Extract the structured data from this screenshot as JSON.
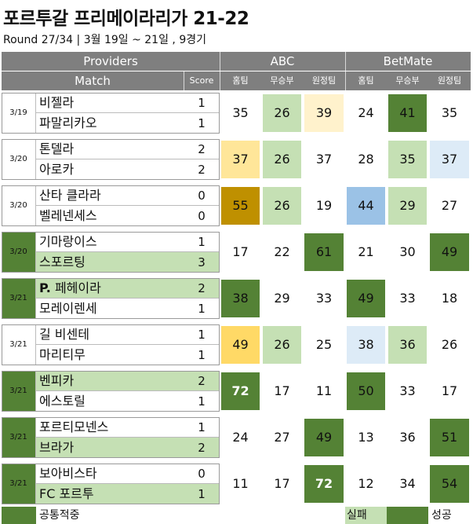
{
  "title": "포르투갈 프리메이라리가 21-22",
  "subtitle": "Round 27/34 | 3월 19일 ~ 21일 , 9경기",
  "header": {
    "providers": "Providers",
    "match": "Match",
    "score": "Score",
    "provider_names": [
      "ABC",
      "BetMate"
    ],
    "outcome_labels": [
      "홈팀",
      "무승부",
      "원정팀",
      "홈팀",
      "무승부",
      "원정팀"
    ]
  },
  "colors": {
    "header_bg": "#7f7f7f",
    "common_hit": "#548235",
    "fail": "#c5e0b4",
    "success": "#548235",
    "yellow_light": "#fff2cc",
    "yellow": "#ffe699",
    "yellow_mid": "#ffd966",
    "gold": "#bf9000",
    "blue_light": "#ddebf7",
    "blue": "#9bc2e6"
  },
  "chart_data": {
    "type": "table",
    "title": "포르투갈 프리메이라리가 21-22",
    "subtitle": "Round 27/34 | 3월 19일 ~ 21일 , 9경기",
    "columns": [
      "ABC 홈팀",
      "ABC 무승부",
      "ABC 원정팀",
      "BetMate 홈팀",
      "BetMate 무승부",
      "BetMate 원정팀"
    ],
    "matches": [
      {
        "date": "3/19",
        "home": "비젤라",
        "away": "파말리카오",
        "home_score": "1",
        "away_score": "1",
        "odds": [
          35,
          26,
          39,
          24,
          41,
          35
        ],
        "row_bg": "",
        "team_hl": [
          "",
          ""
        ],
        "odd_bg": [
          "",
          "#c5e0b4",
          "#fff2cc",
          "",
          "#548235",
          ""
        ]
      },
      {
        "date": "3/20",
        "home": "톤델라",
        "away": "아로카",
        "home_score": "2",
        "away_score": "2",
        "odds": [
          37,
          26,
          37,
          28,
          35,
          37
        ],
        "row_bg": "",
        "team_hl": [
          "",
          ""
        ],
        "odd_bg": [
          "#ffe699",
          "#c5e0b4",
          "",
          "",
          "#c5e0b4",
          "#ddebf7"
        ]
      },
      {
        "date": "3/20",
        "home": "산타 클라라",
        "away": "벨레넨세스",
        "home_score": "0",
        "away_score": "0",
        "odds": [
          55,
          26,
          19,
          44,
          29,
          27
        ],
        "row_bg": "",
        "team_hl": [
          "",
          ""
        ],
        "odd_bg": [
          "#bf9000",
          "#c5e0b4",
          "",
          "#9bc2e6",
          "#c5e0b4",
          ""
        ]
      },
      {
        "date": "3/20",
        "home": "기마랑이스",
        "away": "스포르팅",
        "home_score": "1",
        "away_score": "3",
        "odds": [
          17,
          22,
          61,
          21,
          30,
          49
        ],
        "row_bg": "#548235",
        "team_hl": [
          "",
          "#c5e0b4"
        ],
        "odd_bg": [
          "",
          "",
          "#548235",
          "",
          "",
          "#548235"
        ]
      },
      {
        "date": "3/21",
        "home": "P. 페헤이라",
        "away": "모레이렌세",
        "home_score": "2",
        "away_score": "1",
        "odds": [
          38,
          29,
          33,
          49,
          33,
          18
        ],
        "row_bg": "#548235",
        "team_hl": [
          "#c5e0b4",
          ""
        ],
        "odd_bg": [
          "#548235",
          "",
          "",
          "#548235",
          "",
          ""
        ]
      },
      {
        "date": "3/21",
        "home": "길 비센테",
        "away": "마리티무",
        "home_score": "1",
        "away_score": "1",
        "odds": [
          49,
          26,
          25,
          38,
          36,
          26
        ],
        "row_bg": "",
        "team_hl": [
          "",
          ""
        ],
        "odd_bg": [
          "#ffd966",
          "#c5e0b4",
          "",
          "#ddebf7",
          "#c5e0b4",
          ""
        ]
      },
      {
        "date": "3/21",
        "home": "벤피카",
        "away": "에스토릴",
        "home_score": "2",
        "away_score": "1",
        "odds": [
          72,
          17,
          11,
          50,
          33,
          17
        ],
        "row_bg": "#548235",
        "team_hl": [
          "#c5e0b4",
          ""
        ],
        "odd_bg": [
          "#548235",
          "",
          "",
          "#548235",
          "",
          ""
        ]
      },
      {
        "date": "3/21",
        "home": "포르티모넨스",
        "away": "브라가",
        "home_score": "1",
        "away_score": "2",
        "odds": [
          24,
          27,
          49,
          13,
          36,
          51
        ],
        "row_bg": "#548235",
        "team_hl": [
          "",
          "#c5e0b4"
        ],
        "odd_bg": [
          "",
          "",
          "#548235",
          "",
          "",
          "#548235"
        ]
      },
      {
        "date": "3/21",
        "home": "보아비스타",
        "away": "FC 포르투",
        "home_score": "0",
        "away_score": "1",
        "odds": [
          11,
          17,
          72,
          12,
          34,
          54
        ],
        "row_bg": "#548235",
        "team_hl": [
          "",
          "#c5e0b4"
        ],
        "odd_bg": [
          "",
          "",
          "#548235",
          "",
          "",
          "#548235"
        ]
      }
    ],
    "bold_odds": [
      72
    ],
    "bold_teams": [
      "P."
    ]
  },
  "legend": [
    {
      "label": "공통적중",
      "color": "#548235"
    },
    {
      "label": "실패",
      "color": "#c5e0b4"
    },
    {
      "label": "성공",
      "color": "#548235"
    }
  ]
}
